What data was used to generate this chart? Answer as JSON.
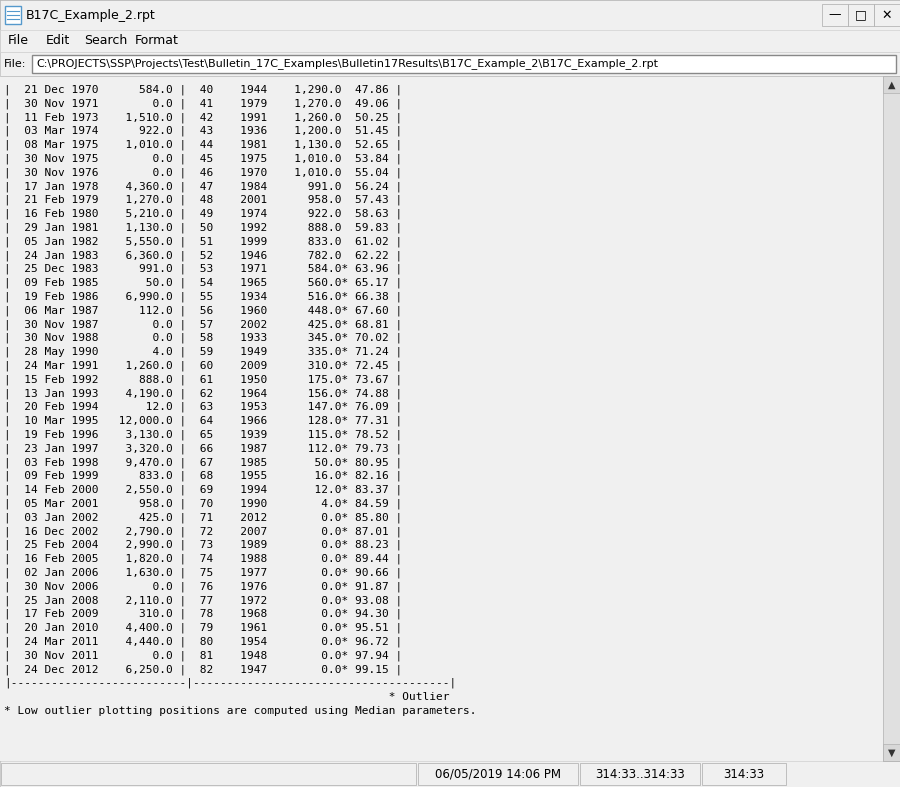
{
  "title": "B17C_Example_2.rpt",
  "filepath": "C:\\PROJECTS\\SSP\\Projects\\Test\\Bulletin_17C_Examples\\Bulletin17Results\\B17C_Example_2\\B17C_Example_2.rpt",
  "menu_items": [
    "File",
    "Edit",
    "Search",
    "Format"
  ],
  "file_label": "File:",
  "content_lines": [
    "|  21 Dec 1970      584.0 |  40    1944    1,290.0  47.86 |",
    "|  30 Nov 1971        0.0 |  41    1979    1,270.0  49.06 |",
    "|  11 Feb 1973    1,510.0 |  42    1991    1,260.0  50.25 |",
    "|  03 Mar 1974      922.0 |  43    1936    1,200.0  51.45 |",
    "|  08 Mar 1975    1,010.0 |  44    1981    1,130.0  52.65 |",
    "|  30 Nov 1975        0.0 |  45    1975    1,010.0  53.84 |",
    "|  30 Nov 1976        0.0 |  46    1970    1,010.0  55.04 |",
    "|  17 Jan 1978    4,360.0 |  47    1984      991.0  56.24 |",
    "|  21 Feb 1979    1,270.0 |  48    2001      958.0  57.43 |",
    "|  16 Feb 1980    5,210.0 |  49    1974      922.0  58.63 |",
    "|  29 Jan 1981    1,130.0 |  50    1992      888.0  59.83 |",
    "|  05 Jan 1982    5,550.0 |  51    1999      833.0  61.02 |",
    "|  24 Jan 1983    6,360.0 |  52    1946      782.0  62.22 |",
    "|  25 Dec 1983      991.0 |  53    1971      584.0* 63.96 |",
    "|  09 Feb 1985       50.0 |  54    1965      560.0* 65.17 |",
    "|  19 Feb 1986    6,990.0 |  55    1934      516.0* 66.38 |",
    "|  06 Mar 1987      112.0 |  56    1960      448.0* 67.60 |",
    "|  30 Nov 1987        0.0 |  57    2002      425.0* 68.81 |",
    "|  30 Nov 1988        0.0 |  58    1933      345.0* 70.02 |",
    "|  28 May 1990        4.0 |  59    1949      335.0* 71.24 |",
    "|  24 Mar 1991    1,260.0 |  60    2009      310.0* 72.45 |",
    "|  15 Feb 1992      888.0 |  61    1950      175.0* 73.67 |",
    "|  13 Jan 1993    4,190.0 |  62    1964      156.0* 74.88 |",
    "|  20 Feb 1994       12.0 |  63    1953      147.0* 76.09 |",
    "|  10 Mar 1995   12,000.0 |  64    1966      128.0* 77.31 |",
    "|  19 Feb 1996    3,130.0 |  65    1939      115.0* 78.52 |",
    "|  23 Jan 1997    3,320.0 |  66    1987      112.0* 79.73 |",
    "|  03 Feb 1998    9,470.0 |  67    1985       50.0* 80.95 |",
    "|  09 Feb 1999      833.0 |  68    1955       16.0* 82.16 |",
    "|  14 Feb 2000    2,550.0 |  69    1994       12.0* 83.37 |",
    "|  05 Mar 2001      958.0 |  70    1990        4.0* 84.59 |",
    "|  03 Jan 2002      425.0 |  71    2012        0.0* 85.80 |",
    "|  16 Dec 2002    2,790.0 |  72    2007        0.0* 87.01 |",
    "|  25 Feb 2004    2,990.0 |  73    1989        0.0* 88.23 |",
    "|  16 Feb 2005    1,820.0 |  74    1988        0.0* 89.44 |",
    "|  02 Jan 2006    1,630.0 |  75    1977        0.0* 90.66 |",
    "|  30 Nov 2006        0.0 |  76    1976        0.0* 91.87 |",
    "|  25 Jan 2008    2,110.0 |  77    1972        0.0* 93.08 |",
    "|  17 Feb 2009      310.0 |  78    1968        0.0* 94.30 |",
    "|  20 Jan 2010    4,400.0 |  79    1961        0.0* 95.51 |",
    "|  24 Mar 2011    4,440.0 |  80    1954        0.0* 96.72 |",
    "|  30 Nov 2011        0.0 |  81    1948        0.0* 97.94 |",
    "|  24 Dec 2012    6,250.0 |  82    1947        0.0* 99.15 |",
    "|--------------------------|--------------------------------------|",
    "                                                         * Outlier",
    "* Low outlier plotting positions are computed using Median parameters."
  ],
  "status_date_time": "06/05/2019 14:06 PM",
  "status_coords1": "314:33..314:33",
  "status_coords2": "314:33",
  "outer_bg": "#ababab",
  "win_bg": "#f0f0f0",
  "content_bg": "#f0f0f0",
  "text_color": "#000000",
  "font_size": 8.0,
  "title_font_size": 9.0,
  "menu_font_size": 9.0,
  "filepath_font_size": 8.0,
  "status_font_size": 8.5
}
